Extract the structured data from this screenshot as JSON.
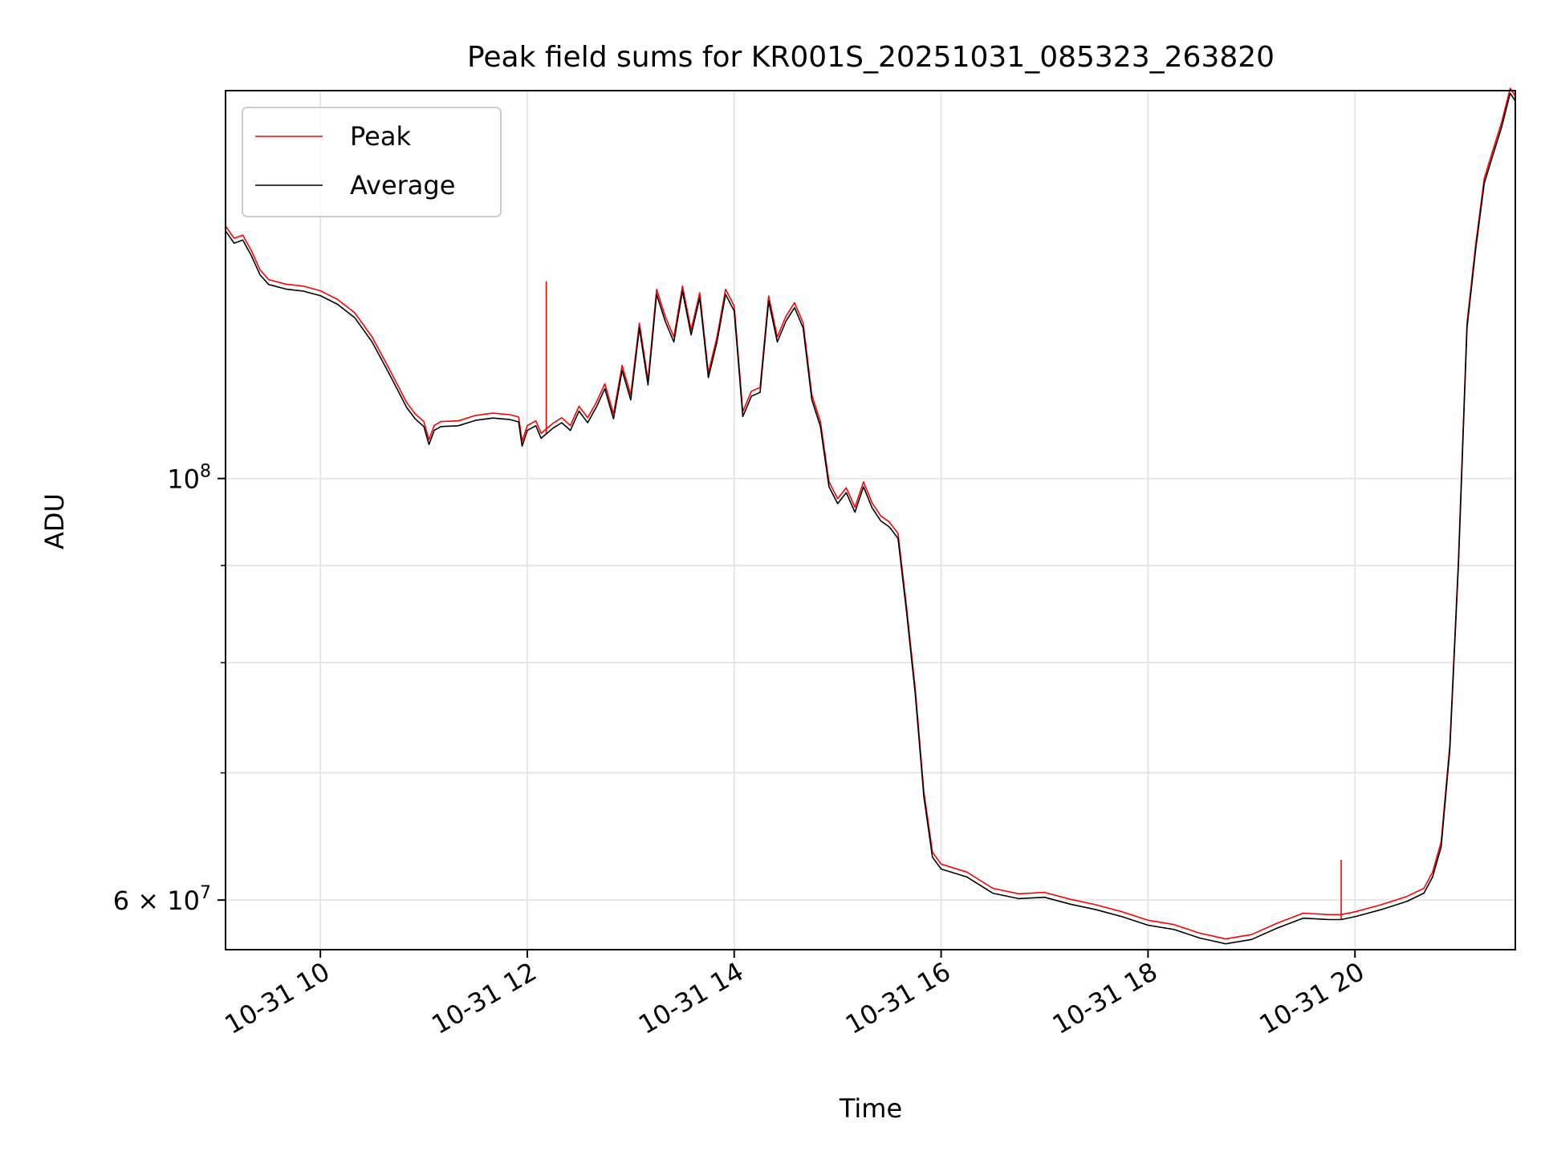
{
  "chart_data": {
    "type": "line",
    "title": "Peak field sums for KR001S_20251031_085323_263820",
    "xlabel": "Time",
    "ylabel": "ADU",
    "y_scale": "log",
    "xlim": [
      "2025-10-31T09:05",
      "2025-10-31T21:33"
    ],
    "ylim": [
      56500000,
      160000000
    ],
    "x_ticks": [
      {
        "t": "2025-10-31T10:00",
        "label": "10-31 10"
      },
      {
        "t": "2025-10-31T12:00",
        "label": "10-31 12"
      },
      {
        "t": "2025-10-31T14:00",
        "label": "10-31 14"
      },
      {
        "t": "2025-10-31T16:00",
        "label": "10-31 16"
      },
      {
        "t": "2025-10-31T18:00",
        "label": "10-31 18"
      },
      {
        "t": "2025-10-31T20:00",
        "label": "10-31 20"
      }
    ],
    "y_major_ticks": [
      {
        "value": 100000000,
        "base": "10",
        "exp": "8"
      },
      {
        "value": 60000000,
        "mant": "6",
        "times": "×",
        "base": "10",
        "exp": "7"
      }
    ],
    "y_minor_ticks": [
      70000000,
      80000000,
      90000000
    ],
    "grid": true,
    "legend_position": "upper-left",
    "series": [
      {
        "name": "Peak",
        "color": "#ff0000",
        "spikes": [
          {
            "t": "2025-10-31T12:11",
            "value": 127000000
          },
          {
            "t": "2025-10-31T19:52",
            "value": 63000000
          }
        ]
      },
      {
        "name": "Average",
        "color": "#000000",
        "points": [
          [
            "2025-10-31T09:05",
            135000000
          ],
          [
            "2025-10-31T09:10",
            133000000
          ],
          [
            "2025-10-31T09:15",
            133500000
          ],
          [
            "2025-10-31T09:20",
            131000000
          ],
          [
            "2025-10-31T09:25",
            128000000
          ],
          [
            "2025-10-31T09:30",
            126500000
          ],
          [
            "2025-10-31T09:40",
            125800000
          ],
          [
            "2025-10-31T09:50",
            125500000
          ],
          [
            "2025-10-31T10:00",
            124800000
          ],
          [
            "2025-10-31T10:10",
            123500000
          ],
          [
            "2025-10-31T10:20",
            121500000
          ],
          [
            "2025-10-31T10:30",
            118000000
          ],
          [
            "2025-10-31T10:40",
            113500000
          ],
          [
            "2025-10-31T10:50",
            109000000
          ],
          [
            "2025-10-31T10:55",
            107500000
          ],
          [
            "2025-10-31T11:00",
            106500000
          ],
          [
            "2025-10-31T11:03",
            104200000
          ],
          [
            "2025-10-31T11:06",
            106000000
          ],
          [
            "2025-10-31T11:10",
            106500000
          ],
          [
            "2025-10-31T11:20",
            106600000
          ],
          [
            "2025-10-31T11:30",
            107300000
          ],
          [
            "2025-10-31T11:40",
            107600000
          ],
          [
            "2025-10-31T11:50",
            107400000
          ],
          [
            "2025-10-31T11:55",
            107100000
          ],
          [
            "2025-10-31T11:57",
            104000000
          ],
          [
            "2025-10-31T12:00",
            106000000
          ],
          [
            "2025-10-31T12:05",
            106600000
          ],
          [
            "2025-10-31T12:08",
            105000000
          ],
          [
            "2025-10-31T12:15",
            106300000
          ],
          [
            "2025-10-31T12:20",
            107000000
          ],
          [
            "2025-10-31T12:25",
            106000000
          ],
          [
            "2025-10-31T12:30",
            108500000
          ],
          [
            "2025-10-31T12:35",
            107000000
          ],
          [
            "2025-10-31T12:40",
            109000000
          ],
          [
            "2025-10-31T12:45",
            111500000
          ],
          [
            "2025-10-31T12:50",
            107500000
          ],
          [
            "2025-10-31T12:55",
            114000000
          ],
          [
            "2025-10-31T13:00",
            110000000
          ],
          [
            "2025-10-31T13:05",
            120000000
          ],
          [
            "2025-10-31T13:10",
            112000000
          ],
          [
            "2025-10-31T13:15",
            125000000
          ],
          [
            "2025-10-31T13:20",
            121000000
          ],
          [
            "2025-10-31T13:25",
            118000000
          ],
          [
            "2025-10-31T13:30",
            125500000
          ],
          [
            "2025-10-31T13:35",
            119000000
          ],
          [
            "2025-10-31T13:40",
            124500000
          ],
          [
            "2025-10-31T13:45",
            113000000
          ],
          [
            "2025-10-31T13:50",
            118000000
          ],
          [
            "2025-10-31T13:55",
            125000000
          ],
          [
            "2025-10-31T14:00",
            122500000
          ],
          [
            "2025-10-31T14:05",
            107800000
          ],
          [
            "2025-10-31T14:10",
            110500000
          ],
          [
            "2025-10-31T14:15",
            111000000
          ],
          [
            "2025-10-31T14:20",
            124000000
          ],
          [
            "2025-10-31T14:25",
            118000000
          ],
          [
            "2025-10-31T14:30",
            121000000
          ],
          [
            "2025-10-31T14:35",
            123000000
          ],
          [
            "2025-10-31T14:40",
            120000000
          ],
          [
            "2025-10-31T14:45",
            110000000
          ],
          [
            "2025-10-31T14:50",
            106500000
          ],
          [
            "2025-10-31T14:55",
            99000000
          ],
          [
            "2025-10-31T15:00",
            97000000
          ],
          [
            "2025-10-31T15:05",
            98300000
          ],
          [
            "2025-10-31T15:10",
            96000000
          ],
          [
            "2025-10-31T15:15",
            99000000
          ],
          [
            "2025-10-31T15:20",
            96500000
          ],
          [
            "2025-10-31T15:25",
            95000000
          ],
          [
            "2025-10-31T15:30",
            94300000
          ],
          [
            "2025-10-31T15:35",
            93000000
          ],
          [
            "2025-10-31T15:40",
            85000000
          ],
          [
            "2025-10-31T15:45",
            77000000
          ],
          [
            "2025-10-31T15:50",
            68000000
          ],
          [
            "2025-10-31T15:55",
            63200000
          ],
          [
            "2025-10-31T16:00",
            62300000
          ],
          [
            "2025-10-31T16:15",
            61700000
          ],
          [
            "2025-10-31T16:30",
            60500000
          ],
          [
            "2025-10-31T16:45",
            60100000
          ],
          [
            "2025-10-31T17:00",
            60200000
          ],
          [
            "2025-10-31T17:15",
            59700000
          ],
          [
            "2025-10-31T17:30",
            59300000
          ],
          [
            "2025-10-31T17:45",
            58800000
          ],
          [
            "2025-10-31T18:00",
            58200000
          ],
          [
            "2025-10-31T18:15",
            57900000
          ],
          [
            "2025-10-31T18:30",
            57300000
          ],
          [
            "2025-10-31T18:45",
            56900000
          ],
          [
            "2025-10-31T19:00",
            57200000
          ],
          [
            "2025-10-31T19:15",
            58000000
          ],
          [
            "2025-10-31T19:30",
            58700000
          ],
          [
            "2025-10-31T19:45",
            58600000
          ],
          [
            "2025-10-31T19:52",
            58600000
          ],
          [
            "2025-10-31T20:00",
            58800000
          ],
          [
            "2025-10-31T20:15",
            59300000
          ],
          [
            "2025-10-31T20:30",
            59900000
          ],
          [
            "2025-10-31T20:40",
            60500000
          ],
          [
            "2025-10-31T20:45",
            61700000
          ],
          [
            "2025-10-31T20:50",
            64000000
          ],
          [
            "2025-10-31T20:55",
            72000000
          ],
          [
            "2025-10-31T21:00",
            90000000
          ],
          [
            "2025-10-31T21:05",
            120000000
          ],
          [
            "2025-10-31T21:10",
            132000000
          ],
          [
            "2025-10-31T21:15",
            143000000
          ],
          [
            "2025-10-31T21:20",
            148000000
          ],
          [
            "2025-10-31T21:25",
            153000000
          ],
          [
            "2025-10-31T21:30",
            159500000
          ],
          [
            "2025-10-31T21:33",
            158000000
          ]
        ]
      }
    ]
  }
}
